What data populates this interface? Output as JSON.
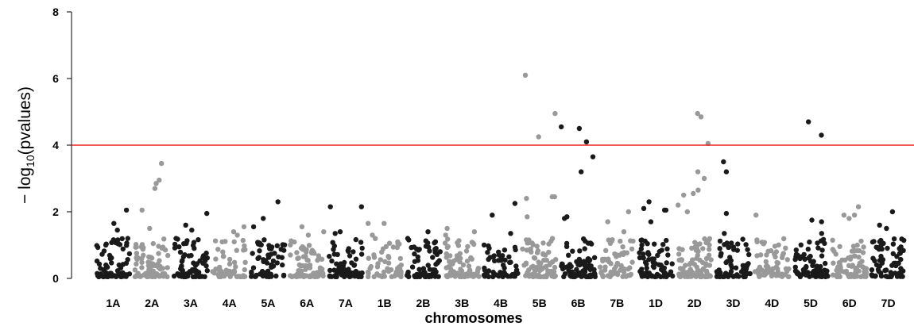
{
  "chart_data": {
    "type": "scatter",
    "title": "",
    "xlabel": "chromosomes",
    "ylabel_prefix": "− log",
    "ylabel_sub": "10",
    "ylabel_suffix": "(pvalues)",
    "ylim": [
      0,
      8
    ],
    "yticks": [
      0,
      2,
      4,
      6,
      8
    ],
    "threshold": 4,
    "grid": false,
    "colors": {
      "dark": "#1a1a1a",
      "light": "#999999",
      "threshold": "#e8231f"
    },
    "chromosomes": [
      {
        "label": "1A",
        "n": 70,
        "peaks": [
          2.05,
          1.65,
          1.45,
          1.2
        ]
      },
      {
        "label": "2A",
        "n": 75,
        "peaks": [
          3.45,
          2.95,
          2.85,
          2.7,
          2.05,
          1.5
        ]
      },
      {
        "label": "3A",
        "n": 65,
        "peaks": [
          1.95,
          1.6,
          1.45,
          1.2
        ]
      },
      {
        "label": "4A",
        "n": 55,
        "peaks": [
          1.55,
          1.4,
          1.3
        ]
      },
      {
        "label": "5A",
        "n": 60,
        "peaks": [
          2.3,
          1.8,
          1.55
        ]
      },
      {
        "label": "6A",
        "n": 75,
        "peaks": [
          1.55,
          1.4,
          1.3
        ]
      },
      {
        "label": "7A",
        "n": 70,
        "peaks": [
          2.15,
          2.15,
          1.4,
          1.35
        ]
      },
      {
        "label": "1B",
        "n": 55,
        "peaks": [
          1.65,
          1.65,
          1.3
        ]
      },
      {
        "label": "2B",
        "n": 65,
        "peaks": [
          1.4,
          1.2,
          1.1
        ]
      },
      {
        "label": "3B",
        "n": 65,
        "peaks": [
          1.5,
          1.4,
          1.3
        ]
      },
      {
        "label": "4B",
        "n": 55,
        "peaks": [
          2.25,
          1.9,
          1.35
        ]
      },
      {
        "label": "5B",
        "n": 80,
        "peaks": [
          6.1,
          4.95,
          4.25,
          2.45,
          2.45,
          2.4,
          1.85
        ]
      },
      {
        "label": "6B",
        "n": 75,
        "peaks": [
          4.55,
          4.5,
          4.1,
          3.65,
          3.2,
          1.85,
          1.8
        ]
      },
      {
        "label": "7B",
        "n": 55,
        "peaks": [
          2.0,
          1.7,
          1.4
        ]
      },
      {
        "label": "1D",
        "n": 70,
        "peaks": [
          2.1,
          2.05,
          2.05,
          1.7,
          2.3
        ]
      },
      {
        "label": "2D",
        "n": 90,
        "peaks": [
          4.95,
          4.85,
          4.05,
          3.2,
          3.0,
          2.65,
          2.55,
          2.5,
          2.2,
          2.0
        ]
      },
      {
        "label": "3D",
        "n": 60,
        "peaks": [
          3.5,
          3.2,
          1.95,
          1.35
        ]
      },
      {
        "label": "4D",
        "n": 65,
        "peaks": [
          1.9,
          1.1,
          1.05
        ]
      },
      {
        "label": "5D",
        "n": 70,
        "peaks": [
          4.7,
          4.3,
          1.75,
          1.7,
          1.35
        ]
      },
      {
        "label": "6D",
        "n": 70,
        "peaks": [
          2.15,
          1.9,
          1.9,
          1.8
        ]
      },
      {
        "label": "7D",
        "n": 65,
        "peaks": [
          2.0,
          1.6,
          1.5,
          1.05
        ]
      }
    ]
  }
}
